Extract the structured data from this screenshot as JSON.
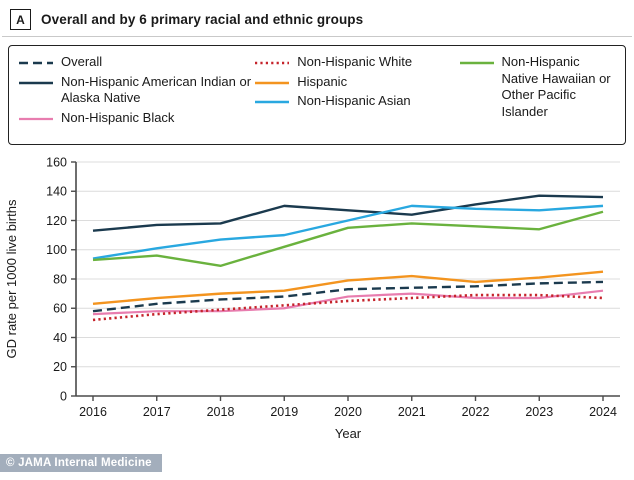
{
  "panel": {
    "marker": "A",
    "title": "Overall and by 6 primary racial and ethnic groups"
  },
  "watermark": "© JAMA Internal Medicine",
  "chart_data": {
    "type": "line",
    "x": [
      2016,
      2017,
      2018,
      2019,
      2020,
      2021,
      2022,
      2023,
      2024
    ],
    "xlabel": "Year",
    "ylabel": "GD rate per 1000 live births",
    "ylim": [
      0,
      160
    ],
    "ytick_step": 20,
    "grid": "horizontal-light-gray",
    "legend_position": "boxed-top-3-columns",
    "series": [
      {
        "id": "overall",
        "name": "Overall",
        "color": "#1b3a4e",
        "dash": "9 5",
        "width": 2.4,
        "values": [
          58,
          63,
          66,
          68,
          73,
          74,
          75,
          77,
          78
        ]
      },
      {
        "id": "aian",
        "name": "Non-Hispanic American Indian or Alaska Native",
        "color": "#1b3a4e",
        "dash": null,
        "width": 2.4,
        "values": [
          113,
          117,
          118,
          130,
          127,
          124,
          131,
          137,
          136
        ]
      },
      {
        "id": "black",
        "name": "Non-Hispanic Black",
        "color": "#e87daf",
        "dash": null,
        "width": 2.2,
        "values": [
          56,
          58,
          58,
          60,
          68,
          70,
          67,
          67,
          72
        ]
      },
      {
        "id": "white",
        "name": "Non-Hispanic White",
        "color": "#c5232b",
        "dash": "2.2 3.2",
        "width": 2.6,
        "values": [
          52,
          56,
          59,
          62,
          65,
          67,
          69,
          69,
          67
        ]
      },
      {
        "id": "hispanic",
        "name": "Hispanic",
        "color": "#f3941f",
        "dash": null,
        "width": 2.4,
        "values": [
          63,
          67,
          70,
          72,
          79,
          82,
          78,
          81,
          85
        ]
      },
      {
        "id": "asian",
        "name": "Non-Hispanic Asian",
        "color": "#29a8e0",
        "dash": null,
        "width": 2.4,
        "values": [
          94,
          101,
          107,
          110,
          120,
          130,
          128,
          127,
          130
        ]
      },
      {
        "id": "nhpi",
        "name": "Non-Hispanic Native Hawaiian or Other Pacific Islander",
        "color": "#6ab23e",
        "dash": null,
        "width": 2.4,
        "values": [
          93,
          96,
          89,
          102,
          115,
          118,
          116,
          114,
          126
        ]
      }
    ],
    "legend_columns": [
      [
        "overall",
        "aian",
        "black"
      ],
      [
        "white",
        "hispanic",
        "asian"
      ],
      [
        "nhpi"
      ]
    ]
  }
}
